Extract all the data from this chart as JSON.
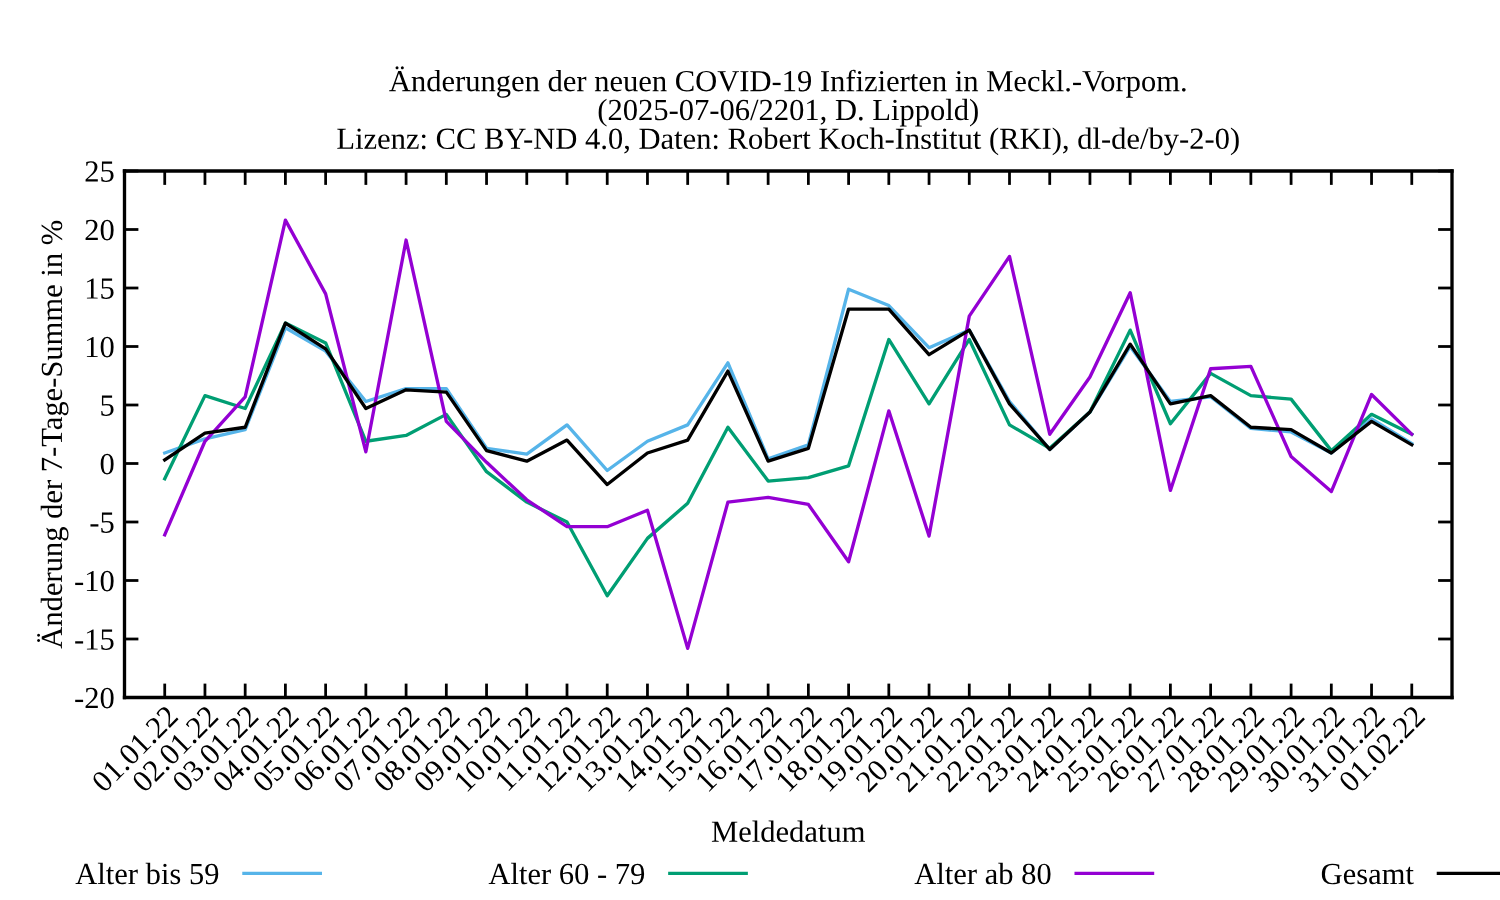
{
  "chart_data": {
    "type": "line",
    "title": "Änderungen der neuen COVID-19 Infizierten in Meckl.-Vorpom.\n(2025-07-06/2201, D. Lippold)\nLizenz: CC BY-ND 4.0, Daten: Robert Koch-Institut (RKI), dl-de/by-2-0)",
    "xlabel": "Meldedatum",
    "ylabel": "Änderung der 7-Tage-Summe in %",
    "categories": [
      "01.01.22",
      "02.01.22",
      "03.01.22",
      "04.01.22",
      "05.01.22",
      "06.01.22",
      "07.01.22",
      "08.01.22",
      "09.01.22",
      "10.01.22",
      "11.01.22",
      "12.01.22",
      "13.01.22",
      "14.01.22",
      "15.01.22",
      "16.01.22",
      "17.01.22",
      "18.01.22",
      "19.01.22",
      "20.01.22",
      "21.01.22",
      "22.01.22",
      "23.01.22",
      "24.01.22",
      "25.01.22",
      "26.01.22",
      "27.01.22",
      "28.01.22",
      "29.01.22",
      "30.01.22",
      "31.01.22",
      "01.02.22"
    ],
    "series": [
      {
        "name": "Alter bis 59",
        "color": "#56b4e9",
        "values": [
          0.9,
          2.1,
          2.9,
          11.6,
          9.6,
          5.3,
          6.4,
          6.4,
          1.3,
          0.8,
          3.3,
          -0.6,
          1.9,
          3.3,
          8.6,
          0.4,
          1.6,
          14.9,
          13.5,
          9.9,
          11.4,
          5.3,
          1.2,
          4.4,
          10.0,
          5.3,
          5.7,
          3.0,
          2.7,
          0.9,
          3.8,
          1.7
        ]
      },
      {
        "name": "Alter 60 - 79",
        "color": "#009e73",
        "values": [
          -1.3,
          5.8,
          4.7,
          12.0,
          10.3,
          1.9,
          2.4,
          4.2,
          -0.7,
          -3.3,
          -5.0,
          -11.3,
          -6.4,
          -3.4,
          3.1,
          -1.5,
          -1.2,
          -0.2,
          10.6,
          5.1,
          10.6,
          3.3,
          1.3,
          4.4,
          11.4,
          3.4,
          7.7,
          5.8,
          5.5,
          1.1,
          4.2,
          2.5
        ]
      },
      {
        "name": "Alter ab 80",
        "color": "#9400d3",
        "values": [
          -6.1,
          1.9,
          5.7,
          20.8,
          14.5,
          1.0,
          19.1,
          3.6,
          0.1,
          -3.1,
          -5.4,
          -5.4,
          -4.0,
          -15.8,
          -3.3,
          -2.9,
          -3.5,
          -8.4,
          4.5,
          -6.2,
          12.6,
          17.7,
          2.5,
          7.4,
          14.6,
          -2.3,
          8.1,
          8.3,
          0.6,
          -2.4,
          5.9,
          2.5
        ]
      },
      {
        "name": "Gesamt",
        "color": "#000000",
        "values": [
          0.3,
          2.6,
          3.1,
          12.0,
          9.8,
          4.7,
          6.3,
          6.1,
          1.1,
          0.2,
          2.0,
          -1.8,
          0.9,
          2.0,
          7.9,
          0.2,
          1.3,
          13.2,
          13.2,
          9.3,
          11.4,
          5.1,
          1.2,
          4.4,
          10.2,
          5.1,
          5.8,
          3.1,
          2.9,
          0.9,
          3.6,
          1.6
        ]
      }
    ],
    "ylim": [
      -20,
      25
    ],
    "yticks": [
      -20,
      -15,
      -10,
      -5,
      0,
      5,
      10,
      15,
      20,
      25
    ],
    "legend": "bottom",
    "marker": "none",
    "line_style": "solid"
  }
}
